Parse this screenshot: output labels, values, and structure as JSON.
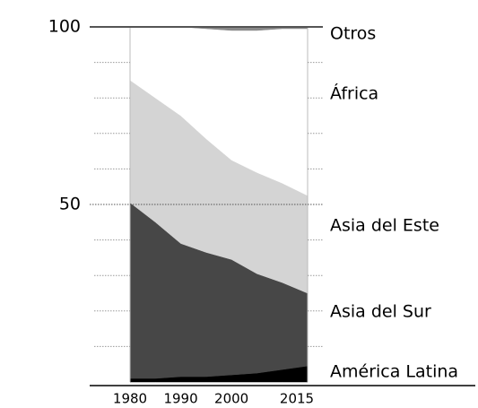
{
  "chart_data": {
    "type": "stacked_area",
    "x": [
      1980,
      1985,
      1990,
      1995,
      2000,
      2005,
      2010,
      2015
    ],
    "xlim": [
      1980,
      2015
    ],
    "xticks": [
      1980,
      1990,
      2000,
      2015
    ],
    "ylim": [
      0,
      100
    ],
    "yticks": [
      50,
      100
    ],
    "minor_yticks": [
      10,
      20,
      30,
      40,
      60,
      70,
      80,
      90
    ],
    "series": [
      {
        "name": "América Latina",
        "color": "#000000",
        "values": [
          1,
          1,
          1.5,
          1.5,
          2,
          2.5,
          3.5,
          4.5
        ]
      },
      {
        "name": "Asia del Sur",
        "color": "#474747",
        "values": [
          49.5,
          44,
          37.5,
          35,
          32.5,
          28,
          24.5,
          20.5
        ]
      },
      {
        "name": "Asia del Este",
        "color": "#d4d4d4",
        "values": [
          34.5,
          35,
          36,
          32,
          28,
          28.5,
          28,
          27.5
        ]
      },
      {
        "name": "África",
        "color": "#ffffff",
        "values": [
          15,
          20,
          25,
          31,
          36.5,
          40,
          43.5,
          47
        ]
      },
      {
        "name": "Otros",
        "color": "#8a8a8a",
        "values": [
          0,
          0,
          0,
          0.5,
          1,
          1,
          0.5,
          0.5
        ]
      }
    ]
  }
}
